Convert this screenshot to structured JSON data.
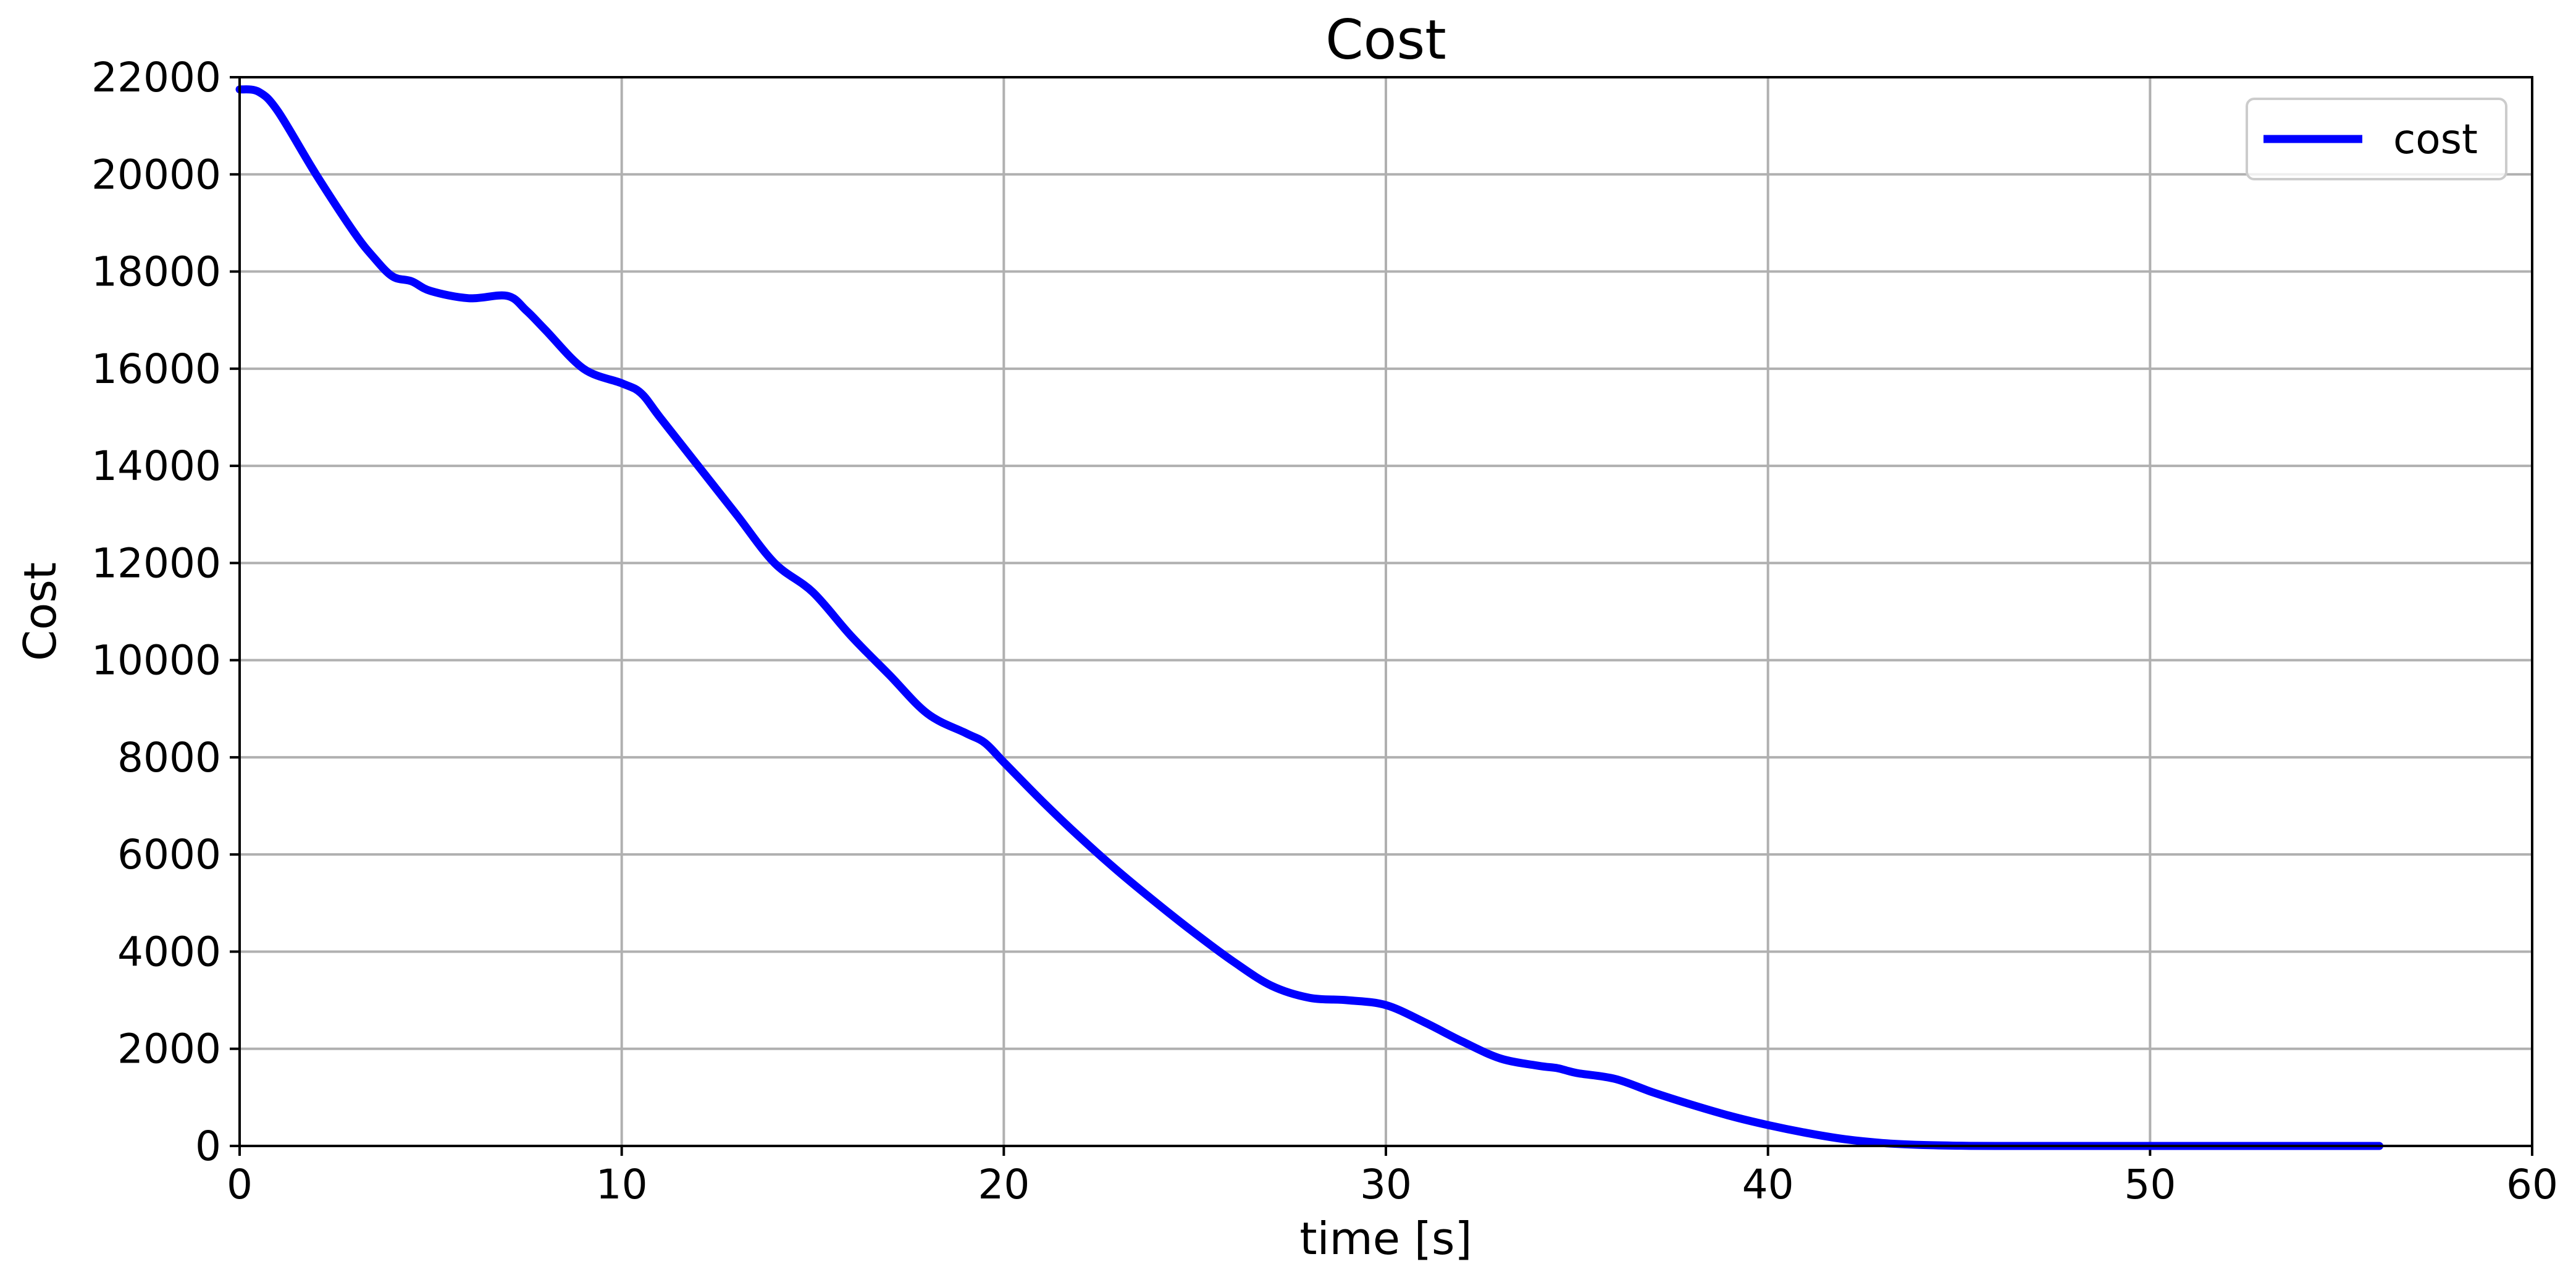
{
  "chart_data": {
    "type": "line",
    "title": "Cost",
    "xlabel": "time [s]",
    "ylabel": "Cost",
    "xlim": [
      0,
      60
    ],
    "ylim": [
      0,
      22000
    ],
    "xticks": [
      "0",
      "10",
      "20",
      "30",
      "40",
      "50",
      "60"
    ],
    "yticks": [
      "0",
      "2000",
      "4000",
      "6000",
      "8000",
      "10000",
      "12000",
      "14000",
      "16000",
      "18000",
      "20000",
      "22000"
    ],
    "grid": true,
    "legend_placement": "top-right",
    "line_color": "#0000ff",
    "series": [
      {
        "name": "cost",
        "x": [
          0,
          0.5,
          1,
          2,
          3,
          3.5,
          4,
          4.5,
          5,
          6,
          7,
          7.5,
          8,
          9,
          10,
          10.5,
          11,
          12,
          13,
          14,
          15,
          16,
          17,
          18,
          19,
          19.5,
          20,
          21,
          22,
          23,
          24,
          25,
          26,
          27,
          28,
          29,
          30,
          31,
          32,
          33,
          34,
          34.5,
          35,
          36,
          37,
          38,
          39,
          40,
          41,
          42,
          43,
          44,
          45,
          46,
          48,
          50,
          52,
          54,
          56
        ],
        "y": [
          21750,
          21700,
          21300,
          20000,
          18800,
          18300,
          17900,
          17800,
          17600,
          17450,
          17500,
          17200,
          16800,
          16000,
          15700,
          15500,
          15000,
          14000,
          13000,
          12000,
          11400,
          10500,
          9700,
          8900,
          8500,
          8300,
          7900,
          7100,
          6350,
          5650,
          5000,
          4380,
          3800,
          3300,
          3050,
          3000,
          2900,
          2550,
          2150,
          1800,
          1650,
          1600,
          1500,
          1380,
          1100,
          850,
          620,
          430,
          270,
          140,
          60,
          20,
          5,
          0,
          0,
          0,
          0,
          0,
          0
        ]
      }
    ]
  }
}
